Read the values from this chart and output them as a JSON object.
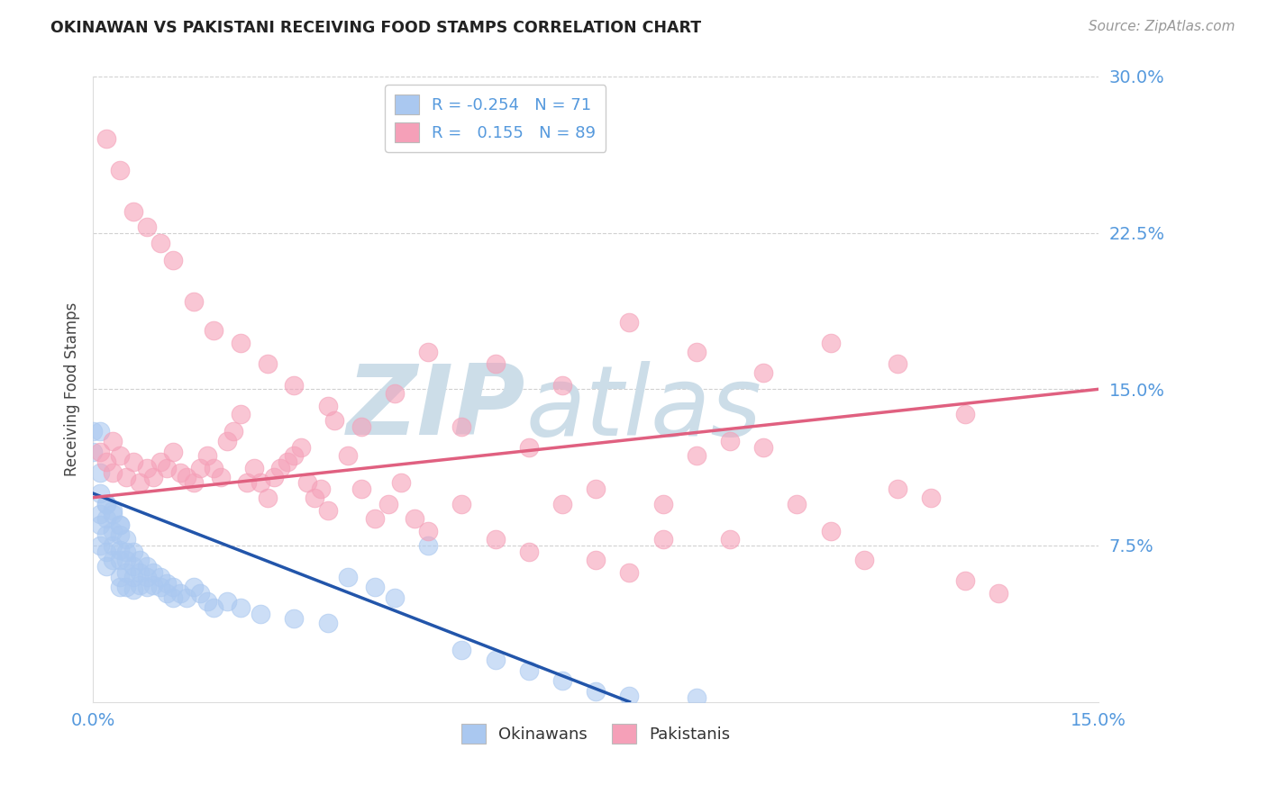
{
  "title": "OKINAWAN VS PAKISTANI RECEIVING FOOD STAMPS CORRELATION CHART",
  "source": "Source: ZipAtlas.com",
  "ylabel": "Receiving Food Stamps",
  "xlim": [
    0.0,
    0.15
  ],
  "ylim": [
    0.0,
    0.3
  ],
  "ytick_positions": [
    0.075,
    0.15,
    0.225,
    0.3
  ],
  "xtick_positions": [
    0.0,
    0.15
  ],
  "grid_color": "#cccccc",
  "background_color": "#ffffff",
  "okinawan_color": "#aac8f0",
  "pakistani_color": "#f5a0b8",
  "okinawan_line_color": "#2255aa",
  "pakistani_line_color": "#e06080",
  "legend_R_okinawan": "-0.254",
  "legend_N_okinawan": "71",
  "legend_R_pakistani": "0.155",
  "legend_N_pakistani": "89",
  "watermark_color": "#ccdde8",
  "tick_color": "#5599dd",
  "okinawan_line_x0": 0.0,
  "okinawan_line_y0": 0.1,
  "okinawan_line_x1": 0.08,
  "okinawan_line_y1": 0.0,
  "pakistani_line_x0": 0.0,
  "pakistani_line_y0": 0.098,
  "pakistani_line_x1": 0.15,
  "pakistani_line_y1": 0.15,
  "okinawan_points_x": [
    0.0,
    0.0,
    0.001,
    0.001,
    0.001,
    0.001,
    0.001,
    0.002,
    0.002,
    0.002,
    0.002,
    0.002,
    0.003,
    0.003,
    0.003,
    0.003,
    0.004,
    0.004,
    0.004,
    0.004,
    0.004,
    0.004,
    0.005,
    0.005,
    0.005,
    0.005,
    0.005,
    0.006,
    0.006,
    0.006,
    0.006,
    0.007,
    0.007,
    0.007,
    0.008,
    0.008,
    0.008,
    0.009,
    0.009,
    0.01,
    0.01,
    0.011,
    0.011,
    0.012,
    0.012,
    0.013,
    0.014,
    0.015,
    0.016,
    0.017,
    0.018,
    0.02,
    0.022,
    0.025,
    0.03,
    0.035,
    0.038,
    0.042,
    0.045,
    0.05,
    0.055,
    0.06,
    0.065,
    0.07,
    0.075,
    0.08,
    0.09,
    0.001,
    0.002,
    0.003,
    0.004
  ],
  "okinawan_points_y": [
    0.13,
    0.12,
    0.11,
    0.1,
    0.09,
    0.085,
    0.075,
    0.095,
    0.088,
    0.08,
    0.072,
    0.065,
    0.09,
    0.082,
    0.075,
    0.068,
    0.085,
    0.08,
    0.073,
    0.068,
    0.06,
    0.055,
    0.078,
    0.072,
    0.068,
    0.062,
    0.055,
    0.072,
    0.065,
    0.06,
    0.054,
    0.068,
    0.062,
    0.056,
    0.065,
    0.06,
    0.055,
    0.062,
    0.056,
    0.06,
    0.055,
    0.057,
    0.052,
    0.055,
    0.05,
    0.052,
    0.05,
    0.055,
    0.052,
    0.048,
    0.045,
    0.048,
    0.045,
    0.042,
    0.04,
    0.038,
    0.06,
    0.055,
    0.05,
    0.075,
    0.025,
    0.02,
    0.015,
    0.01,
    0.005,
    0.003,
    0.002,
    0.13,
    0.095,
    0.092,
    0.085
  ],
  "pakistani_points_x": [
    0.001,
    0.002,
    0.003,
    0.003,
    0.004,
    0.005,
    0.006,
    0.007,
    0.008,
    0.009,
    0.01,
    0.011,
    0.012,
    0.013,
    0.014,
    0.015,
    0.016,
    0.017,
    0.018,
    0.019,
    0.02,
    0.021,
    0.022,
    0.023,
    0.024,
    0.025,
    0.026,
    0.027,
    0.028,
    0.029,
    0.03,
    0.031,
    0.032,
    0.033,
    0.034,
    0.035,
    0.036,
    0.038,
    0.04,
    0.042,
    0.044,
    0.046,
    0.048,
    0.05,
    0.055,
    0.06,
    0.065,
    0.07,
    0.075,
    0.08,
    0.085,
    0.09,
    0.095,
    0.1,
    0.105,
    0.11,
    0.115,
    0.12,
    0.125,
    0.13,
    0.135,
    0.002,
    0.004,
    0.006,
    0.008,
    0.01,
    0.012,
    0.015,
    0.018,
    0.022,
    0.026,
    0.03,
    0.035,
    0.04,
    0.05,
    0.06,
    0.07,
    0.08,
    0.09,
    0.1,
    0.11,
    0.12,
    0.13,
    0.045,
    0.055,
    0.065,
    0.075,
    0.085,
    0.095
  ],
  "pakistani_points_y": [
    0.12,
    0.115,
    0.125,
    0.11,
    0.118,
    0.108,
    0.115,
    0.105,
    0.112,
    0.108,
    0.115,
    0.112,
    0.12,
    0.11,
    0.108,
    0.105,
    0.112,
    0.118,
    0.112,
    0.108,
    0.125,
    0.13,
    0.138,
    0.105,
    0.112,
    0.105,
    0.098,
    0.108,
    0.112,
    0.115,
    0.118,
    0.122,
    0.105,
    0.098,
    0.102,
    0.092,
    0.135,
    0.118,
    0.102,
    0.088,
    0.095,
    0.105,
    0.088,
    0.082,
    0.095,
    0.078,
    0.072,
    0.095,
    0.068,
    0.062,
    0.078,
    0.118,
    0.125,
    0.122,
    0.095,
    0.082,
    0.068,
    0.102,
    0.098,
    0.058,
    0.052,
    0.27,
    0.255,
    0.235,
    0.228,
    0.22,
    0.212,
    0.192,
    0.178,
    0.172,
    0.162,
    0.152,
    0.142,
    0.132,
    0.168,
    0.162,
    0.152,
    0.182,
    0.168,
    0.158,
    0.172,
    0.162,
    0.138,
    0.148,
    0.132,
    0.122,
    0.102,
    0.095,
    0.078
  ]
}
